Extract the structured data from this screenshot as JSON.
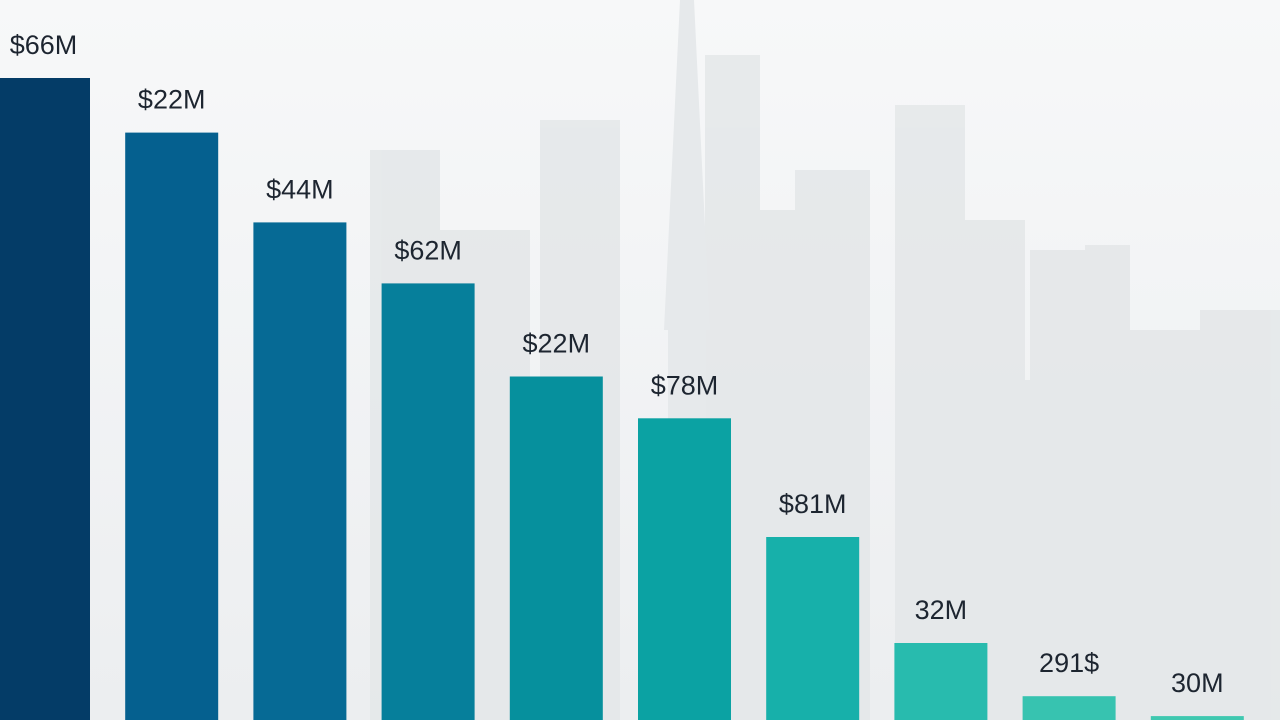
{
  "chart_data": {
    "type": "bar",
    "title": "",
    "xlabel": "",
    "ylabel": "",
    "data_labels": [
      "$66M",
      "$22M",
      "$44M",
      "$62M",
      "$22M",
      "$78M",
      "$81M",
      "32M",
      "291$",
      "30M"
    ],
    "values": [
      100,
      91.5,
      77.5,
      68,
      53.5,
      47,
      28.5,
      12,
      3.7,
      0.6
    ],
    "value_scale": "relative bar height, percent of tallest bar",
    "ylim": [
      0,
      100
    ],
    "grid": false,
    "legend": "none",
    "bar_colors": [
      "#043c67",
      "#05608f",
      "#066a95",
      "#067f9b",
      "#06909d",
      "#0ba2a3",
      "#17b0aa",
      "#28bbae",
      "#37c3b0",
      "#3fc8b0"
    ]
  },
  "background": {
    "scene": "skyline",
    "sky_color": "#f5f6f7",
    "building_color": "#e3e6e8"
  }
}
